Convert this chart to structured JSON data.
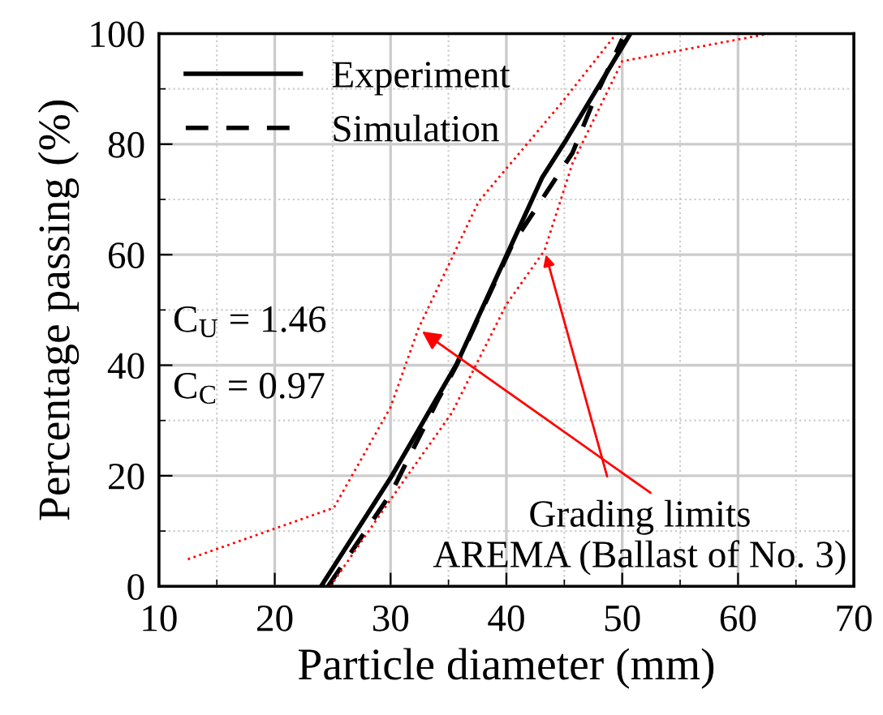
{
  "chart_data": {
    "type": "line",
    "xlabel": "Particle diameter (mm)",
    "ylabel": "Percentage passing (%)",
    "xlim": [
      10,
      70
    ],
    "xticks": [
      10,
      20,
      30,
      40,
      50,
      60,
      70
    ],
    "ylim": [
      0,
      100
    ],
    "yticks": [
      0,
      20,
      40,
      60,
      80,
      100
    ],
    "grid": true,
    "legend": "top left",
    "series": [
      {
        "name": "Experiment",
        "color": "#000000",
        "line_style": "solid",
        "x": [
          24.0,
          30.0,
          35.7,
          40.0,
          43.1,
          45.2,
          50.7
        ],
        "values": [
          0,
          19.6,
          40.2,
          59.8,
          74,
          80.9,
          100
        ]
      },
      {
        "name": "Simulation",
        "color": "#000000",
        "line_style": "dashed",
        "x": [
          24.6,
          30.0,
          34.1,
          35.7,
          40.5,
          45.7,
          47.6,
          50.0
        ],
        "values": [
          0,
          16.7,
          33.8,
          40,
          61.8,
          78.4,
          88.2,
          99
        ]
      },
      {
        "color": "#ff0000",
        "line_style": "dotted",
        "x": [
          12.5,
          25.1,
          30.0,
          32.4,
          37.6,
          44.7,
          49.5
        ],
        "values": [
          4.9,
          14.2,
          32.4,
          46.6,
          69.6,
          87.3,
          100
        ]
      },
      {
        "color": "#ff0000",
        "line_style": "dotted",
        "x": [
          24.8,
          30.0,
          35.3,
          40.0,
          43.3,
          45.7,
          50.0,
          62.7
        ],
        "values": [
          0,
          15.7,
          31.4,
          51,
          60.8,
          76.5,
          95,
          100
        ]
      }
    ],
    "annotations": [
      "C$_{U}$ = 1.46",
      "C$_{C}$ = 0.97",
      {
        "text": "Grading limits\nAREMA (Ballast of No. 3)",
        "x": 32.4,
        "y": 46.6
      }
    ]
  }
}
